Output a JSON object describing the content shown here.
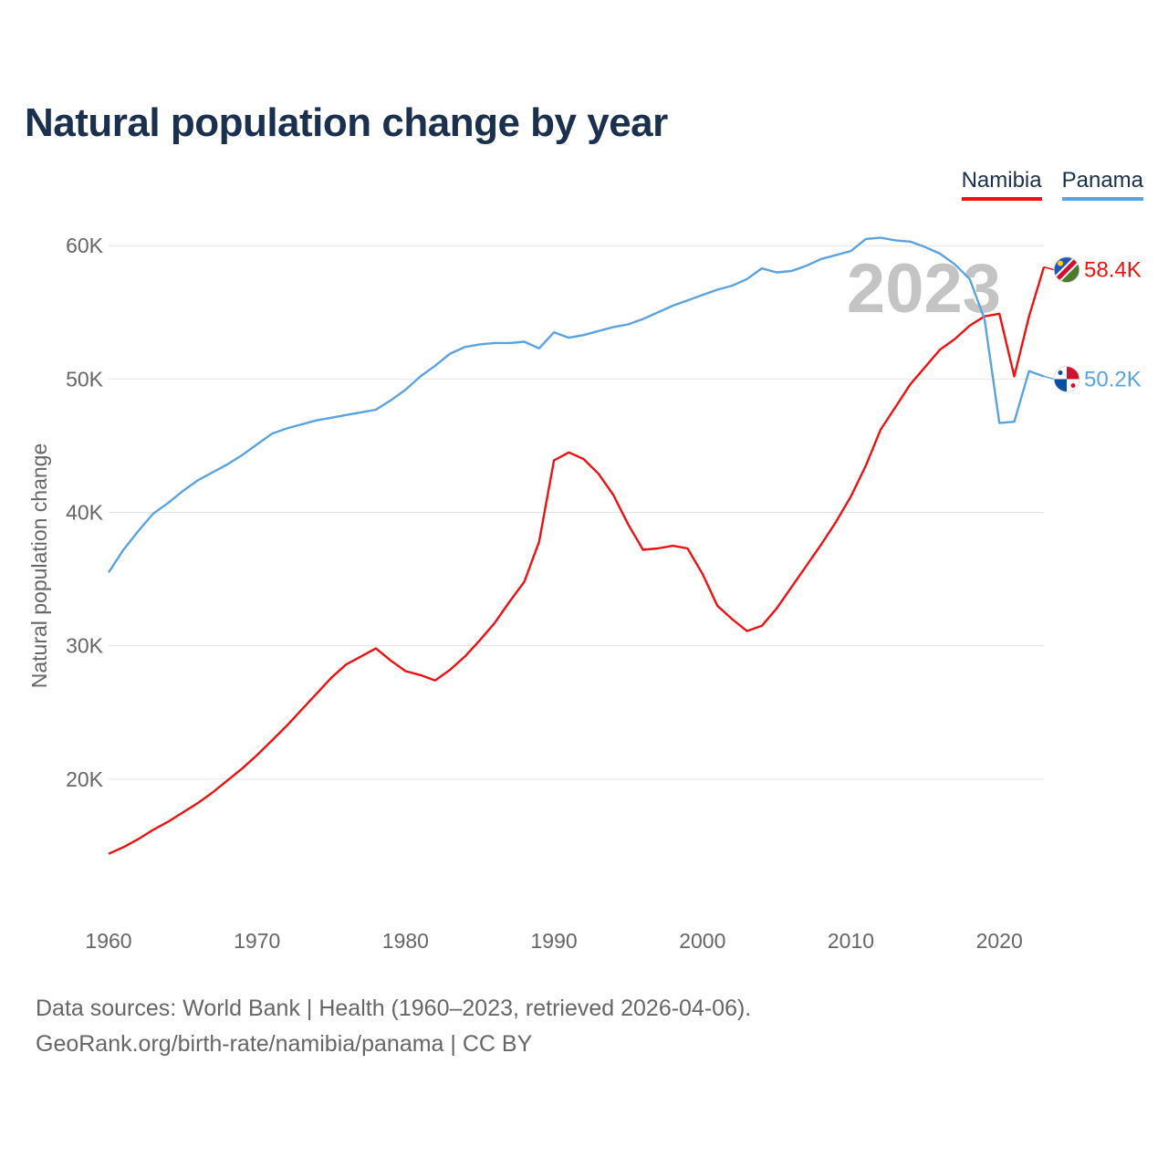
{
  "title": "Natural population change by year",
  "legend": [
    {
      "name": "Namibia",
      "color": "#ee1111"
    },
    {
      "name": "Panama",
      "color": "#5ba3e0"
    }
  ],
  "chart_data": {
    "type": "line",
    "title": "Natural population change by year",
    "ylabel": "Natural population change",
    "xlabel": "",
    "year_label": "2023",
    "xlim": [
      1960,
      2023
    ],
    "ylim": [
      10000,
      62000
    ],
    "x_ticks": [
      1960,
      1970,
      1980,
      1990,
      2000,
      2010,
      2020
    ],
    "x_tick_labels": [
      "1960",
      "1970",
      "1980",
      "1990",
      "2000",
      "2010",
      "2020"
    ],
    "y_ticks": [
      20000,
      30000,
      40000,
      50000,
      60000
    ],
    "y_tick_labels": [
      "20K",
      "30K",
      "40K",
      "50K",
      "60K"
    ],
    "grid": true,
    "legend_position": "top-right",
    "series": [
      {
        "name": "Namibia",
        "color": "#ee1111",
        "end_label": "58.4K",
        "x": [
          1960,
          1961,
          1962,
          1963,
          1964,
          1965,
          1966,
          1967,
          1968,
          1969,
          1970,
          1971,
          1972,
          1973,
          1974,
          1975,
          1976,
          1977,
          1978,
          1979,
          1980,
          1981,
          1982,
          1983,
          1984,
          1985,
          1986,
          1987,
          1988,
          1989,
          1990,
          1991,
          1992,
          1993,
          1994,
          1995,
          1996,
          1997,
          1998,
          1999,
          2000,
          2001,
          2002,
          2003,
          2004,
          2005,
          2006,
          2007,
          2008,
          2009,
          2010,
          2011,
          2012,
          2013,
          2014,
          2015,
          2016,
          2017,
          2018,
          2019,
          2020,
          2021,
          2022,
          2023
        ],
        "values": [
          14400,
          14900,
          15500,
          16200,
          16800,
          17500,
          18200,
          19000,
          19900,
          20800,
          21800,
          22900,
          24000,
          25200,
          26400,
          27600,
          28600,
          29200,
          29800,
          28900,
          28100,
          27800,
          27400,
          28200,
          29200,
          30400,
          31700,
          33300,
          34800,
          37800,
          43900,
          44500,
          44000,
          42900,
          41300,
          39100,
          37200,
          37300,
          37500,
          37300,
          35400,
          33000,
          32000,
          31100,
          31500,
          32800,
          34400,
          36000,
          37600,
          39300,
          41200,
          43500,
          46200,
          47900,
          49600,
          50900,
          52200,
          53000,
          54000,
          54700,
          54900,
          50200,
          54700,
          58400
        ]
      },
      {
        "name": "Panama",
        "color": "#5ba3e0",
        "end_label": "50.2K",
        "x": [
          1960,
          1961,
          1962,
          1963,
          1964,
          1965,
          1966,
          1967,
          1968,
          1969,
          1970,
          1971,
          1972,
          1973,
          1974,
          1975,
          1976,
          1977,
          1978,
          1979,
          1980,
          1981,
          1982,
          1983,
          1984,
          1985,
          1986,
          1987,
          1988,
          1989,
          1990,
          1991,
          1992,
          1993,
          1994,
          1995,
          1996,
          1997,
          1998,
          1999,
          2000,
          2001,
          2002,
          2003,
          2004,
          2005,
          2006,
          2007,
          2008,
          2009,
          2010,
          2011,
          2012,
          2013,
          2014,
          2015,
          2016,
          2017,
          2018,
          2019,
          2020,
          2021,
          2022,
          2023
        ],
        "values": [
          35500,
          37200,
          38600,
          39900,
          40700,
          41600,
          42400,
          43000,
          43600,
          44300,
          45100,
          45900,
          46300,
          46600,
          46900,
          47100,
          47300,
          47500,
          47700,
          48400,
          49200,
          50200,
          51000,
          51900,
          52400,
          52600,
          52700,
          52700,
          52800,
          52300,
          53500,
          53100,
          53300,
          53600,
          53900,
          54100,
          54500,
          55000,
          55500,
          55900,
          56300,
          56700,
          57000,
          57500,
          58300,
          58000,
          58100,
          58500,
          59000,
          59300,
          59600,
          60500,
          60600,
          60400,
          60300,
          59900,
          59400,
          58600,
          57500,
          54500,
          46700,
          46800,
          50600,
          50200
        ]
      }
    ]
  },
  "footer": {
    "line1": "Data sources: World Bank | Health (1960–2023, retrieved 2026-04-06).",
    "line2": "GeoRank.org/birth-rate/namibia/panama | CC BY"
  }
}
